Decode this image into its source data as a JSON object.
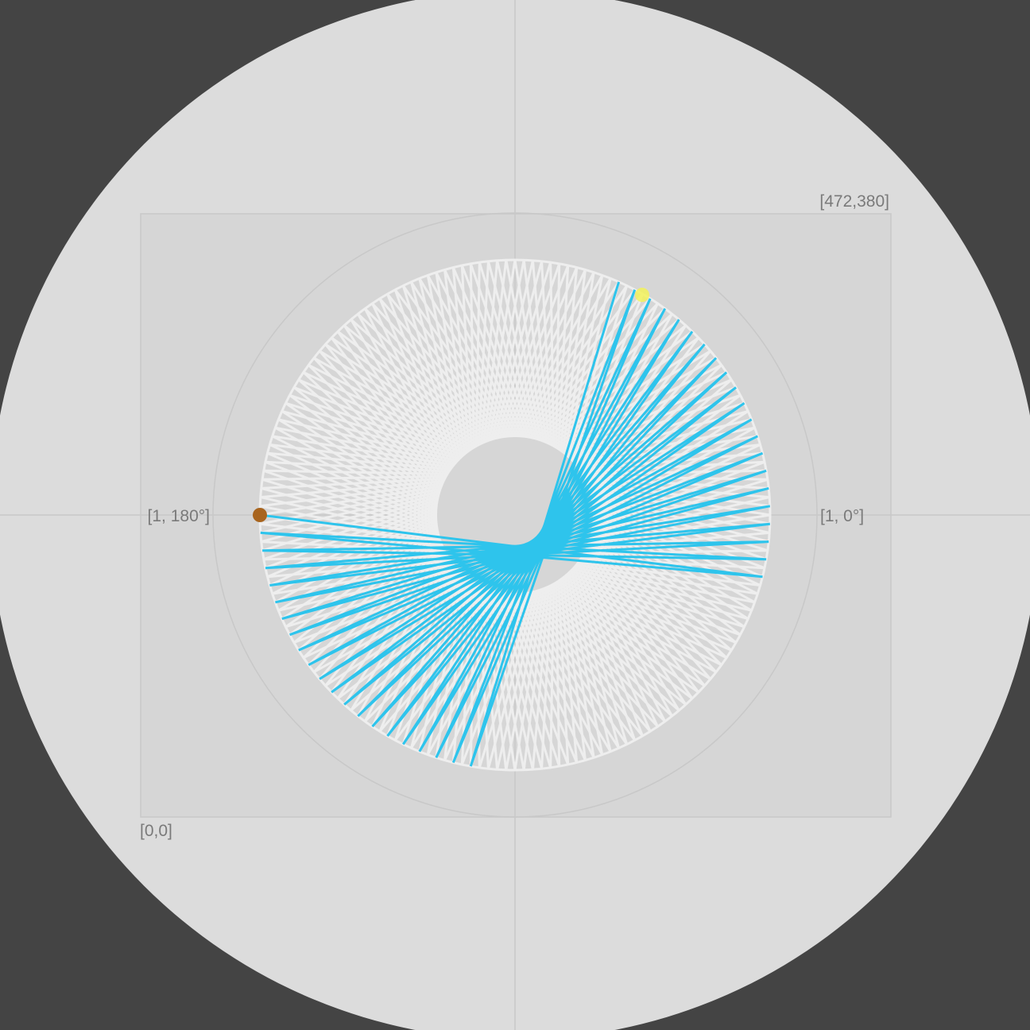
{
  "labels": {
    "corner_top_right": "[472,380]",
    "corner_bottom_left": "[0,0]",
    "axis_right": "[1, 0°]",
    "axis_left": "[1, 180°]"
  },
  "colors": {
    "background": "#444444",
    "disc": "#dcdcdc",
    "panel": "#d6d6d6",
    "grid": "#c8c8c8",
    "guide": "#eeeeee",
    "trace": "#2ec4ec",
    "start_marker": "#a8641e",
    "end_marker": "#f2f25a"
  },
  "markers": {
    "start_marker": "start-point",
    "end_marker": "current-point"
  }
}
